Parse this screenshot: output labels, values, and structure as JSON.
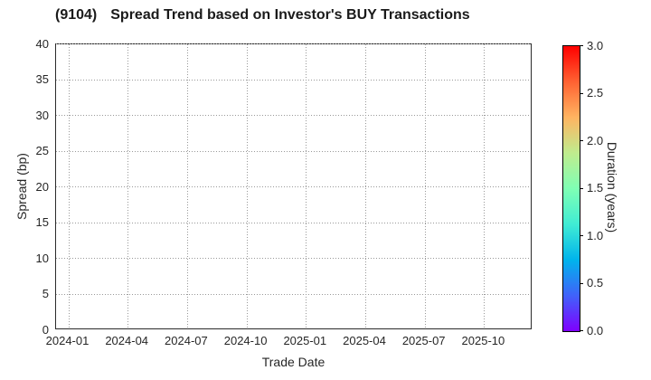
{
  "header": {
    "ticker": "(9104)",
    "title_text": "Spread Trend based on Investor's BUY Transactions"
  },
  "chart_data": {
    "type": "scatter",
    "title": "(9104)  Spread Trend based on Investor's BUY Transactions",
    "xlabel": "Trade Date",
    "ylabel": "Spread (bp)",
    "x_tick_labels": [
      "2024-01",
      "2024-04",
      "2024-07",
      "2024-10",
      "2025-01",
      "2025-04",
      "2025-07",
      "2025-10"
    ],
    "y_tick_values": [
      0,
      5,
      10,
      15,
      20,
      25,
      30,
      35,
      40
    ],
    "ylim": [
      0,
      40
    ],
    "grid": {
      "style": "dotted",
      "on": true
    },
    "series": [],
    "points_note": "no data points plotted; axes empty",
    "colorbar": {
      "label": "Duration (years)",
      "min": 0.0,
      "max": 3.0,
      "tick_labels_bottom_to_top": [
        "0.0",
        "0.5",
        "1.0",
        "1.5",
        "2.0",
        "2.5",
        "3.0"
      ],
      "colormap": "rainbow",
      "gradient_stops_bottom_to_top": [
        "#7f00ff",
        "#4062fa",
        "#00b4ec",
        "#40ecd4",
        "#7fffb4",
        "#bfec8e",
        "#ffb461",
        "#ff6232",
        "#ff0000"
      ]
    }
  },
  "colors": {
    "background": "#ffffff",
    "text": "#262626",
    "title_text": "#1a1a1a",
    "spine": "#2b2b2b",
    "grid": "#999999"
  }
}
